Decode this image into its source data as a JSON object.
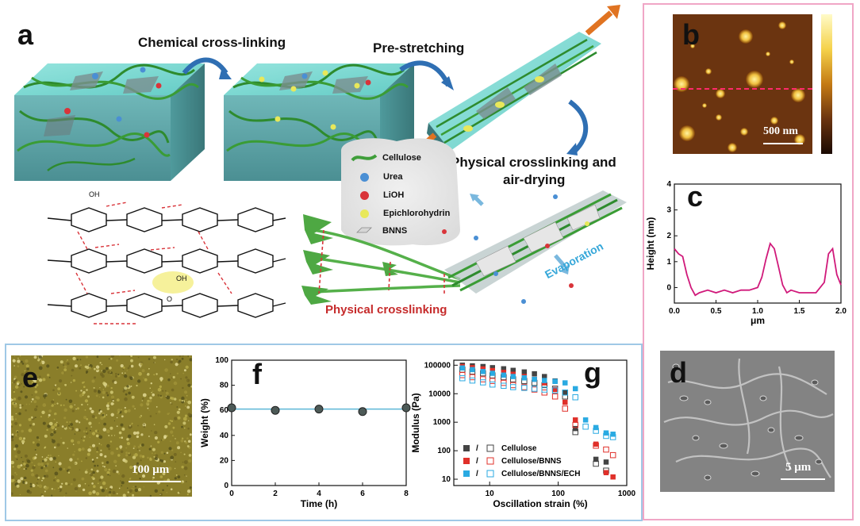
{
  "panel_a": {
    "letter": "a",
    "step_labels": {
      "crosslink": "Chemical cross-linking",
      "prestretch": "Pre-stretching",
      "physical_line1": "Physical crosslinking and",
      "physical_line2": "air-drying",
      "physical_crosslinking": "Physical crosslinking",
      "evaporation": "Evaporation"
    },
    "legend": [
      {
        "label": "Cellulose",
        "symbol": "fiber",
        "color": "#3f9e3a"
      },
      {
        "label": "Urea",
        "symbol": "dot",
        "color": "#4a8fd4"
      },
      {
        "label": "LiOH",
        "symbol": "dot",
        "color": "#d9343a"
      },
      {
        "label": "Epichlorohydrin",
        "symbol": "dot",
        "color": "#e8e85a"
      },
      {
        "label": "BNNS",
        "symbol": "sheet",
        "color": "#d6d6d6"
      }
    ],
    "molecule_groups": [
      "OH",
      "O"
    ]
  },
  "panel_b": {
    "letter": "b",
    "scalebar": "500 nm"
  },
  "panel_c": {
    "letter": "c",
    "chart_data": {
      "type": "line",
      "xlabel": "μm",
      "ylabel": "Height (nm)",
      "xlim": [
        0,
        2.0
      ],
      "ylim": [
        -0.6,
        4
      ],
      "xticks": [
        "0.0",
        "0.5",
        "1.0",
        "1.5",
        "2.0"
      ],
      "yticks": [
        "0",
        "1",
        "2",
        "3",
        "4"
      ],
      "color": "#d0197a",
      "x": [
        0.0,
        0.05,
        0.1,
        0.15,
        0.2,
        0.25,
        0.3,
        0.4,
        0.5,
        0.6,
        0.7,
        0.8,
        0.9,
        1.0,
        1.05,
        1.1,
        1.15,
        1.2,
        1.25,
        1.3,
        1.35,
        1.4,
        1.5,
        1.6,
        1.7,
        1.8,
        1.85,
        1.9,
        1.95,
        2.0
      ],
      "y": [
        1.5,
        1.3,
        1.2,
        0.5,
        0.0,
        -0.3,
        -0.2,
        -0.1,
        -0.2,
        -0.1,
        -0.2,
        -0.1,
        -0.1,
        0.0,
        0.4,
        1.1,
        1.7,
        1.5,
        0.8,
        0.1,
        -0.2,
        -0.1,
        -0.2,
        -0.2,
        -0.2,
        0.2,
        1.3,
        1.5,
        0.5,
        0.1
      ]
    }
  },
  "panel_d": {
    "letter": "d",
    "scalebar": "5 μm"
  },
  "panel_e": {
    "letter": "e",
    "scalebar": "100 μm"
  },
  "panel_f": {
    "letter": "f",
    "chart_data": {
      "type": "scatter",
      "xlabel": "Time (h)",
      "ylabel": "Weight (%)",
      "xlim": [
        0,
        8
      ],
      "ylim": [
        0,
        100
      ],
      "xticks": [
        "0",
        "2",
        "4",
        "6",
        "8"
      ],
      "yticks": [
        "0",
        "20",
        "40",
        "60",
        "80",
        "100"
      ],
      "fit_line": 61,
      "line_color": "#5bb7d6",
      "x": [
        0,
        2,
        4,
        6,
        8
      ],
      "y": [
        62,
        60,
        61,
        59,
        62
      ]
    }
  },
  "panel_g": {
    "letter": "g",
    "chart_data": {
      "type": "scatter",
      "xlabel": "Oscillation strain (%)",
      "ylabel": "Modulus (Pa)",
      "xscale": "log",
      "yscale": "log",
      "xlim": [
        3,
        1000
      ],
      "ylim": [
        6,
        150000
      ],
      "xticks": [
        "10",
        "100",
        "1000"
      ],
      "yticks": [
        "10",
        "100",
        "1000",
        "10000",
        "100000"
      ],
      "x": [
        4,
        5.6,
        8,
        11,
        16,
        22,
        32,
        45,
        63,
        90,
        126,
        178,
        251,
        355,
        500,
        630
      ],
      "legend_separator": "/",
      "series": [
        {
          "name": "Cellulose",
          "color": "#444444",
          "storage": [
            100000,
            95000,
            90000,
            82000,
            75000,
            66000,
            58000,
            50000,
            40000,
            28000,
            11000,
            600,
            null,
            50,
            40,
            null
          ],
          "loss": [
            70000,
            60000,
            52000,
            44000,
            38000,
            32000,
            28000,
            24000,
            20000,
            15000,
            8000,
            450,
            null,
            35,
            20,
            null
          ]
        },
        {
          "name": "Cellulose/BNNS",
          "color": "#e0302a",
          "storage": [
            90000,
            82000,
            74000,
            65000,
            56000,
            48000,
            40000,
            32000,
            24000,
            14000,
            5000,
            1200,
            null,
            170,
            17,
            12
          ],
          "loss": [
            45000,
            38000,
            32000,
            28000,
            24000,
            20000,
            17000,
            14000,
            11000,
            8000,
            3000,
            800,
            null,
            150,
            110,
            70
          ]
        },
        {
          "name": "Cellulose/BNNS/ECH",
          "color": "#2aaae2",
          "storage": [
            80000,
            70000,
            60000,
            52000,
            45000,
            40000,
            36000,
            32000,
            29000,
            27000,
            24000,
            15000,
            1200,
            650,
            420,
            380
          ],
          "loss": [
            35000,
            29000,
            25000,
            21000,
            19000,
            17000,
            16000,
            15000,
            14000,
            13000,
            11000,
            7500,
            700,
            500,
            330,
            300
          ]
        }
      ]
    }
  }
}
